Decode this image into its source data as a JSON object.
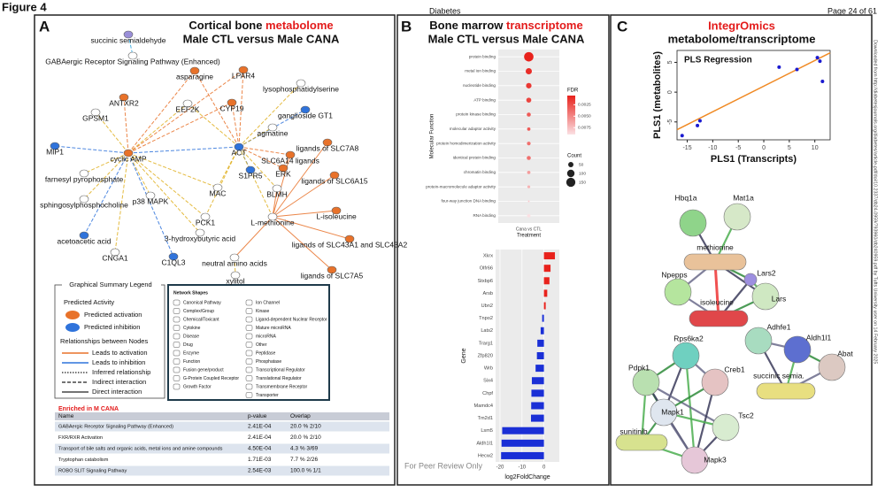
{
  "header": {
    "figure": "Figure 4",
    "journal": "Diabetes",
    "page": "Page 24 of 61"
  },
  "side_note": "Downloaded from http://diabetesjournals.org/diabetes/article-pdf/doi/10.2337/db24-0959/793960/db240959.pdf by Tufts University user on 14 February 2025",
  "panel_a": {
    "letter": "A",
    "title": "Cortical bone ",
    "title_highlight": "metabolome",
    "subtitle": "Male CTL versus Male CANA",
    "nodes": [
      {
        "label": "succinic semialdehyde",
        "color": "#9a8fd8"
      },
      {
        "label": "GABAergic Receptor Signaling Pathway (Enhanced)",
        "color": "#ffffff"
      },
      {
        "label": "asparagine",
        "color": "#e8722a"
      },
      {
        "label": "LPAR4",
        "color": "#e8722a"
      },
      {
        "label": "lysophosphatidylserine",
        "color": "#ffffff"
      },
      {
        "label": "ANTXR2",
        "color": "#e8722a"
      },
      {
        "label": "EEF2K",
        "color": "#ffffff"
      },
      {
        "label": "CYP19",
        "color": "#e8722a"
      },
      {
        "label": "GPSM1",
        "color": "#ffffff"
      },
      {
        "label": "ganglioside GT1",
        "color": "#2f73db"
      },
      {
        "label": "agmatine",
        "color": "#ffffff"
      },
      {
        "label": "MIP1",
        "color": "#2f73db"
      },
      {
        "label": "cyclic AMP",
        "color": "#e8722a"
      },
      {
        "label": "ACT",
        "color": "#2f73db"
      },
      {
        "label": "ligands of SLC7A8",
        "color": "#e8722a"
      },
      {
        "label": "SLC6A14 ligands",
        "color": "#e8722a"
      },
      {
        "label": "ERK",
        "color": "#e8722a"
      },
      {
        "label": "farnesyl pyrophosphate",
        "color": "#ffffff"
      },
      {
        "label": "S1PR5",
        "color": "#2f73db"
      },
      {
        "label": "ligands of SLC6A15",
        "color": "#e8722a"
      },
      {
        "label": "BLMH",
        "color": "#ffffff"
      },
      {
        "label": "sphingosylphosphocholine",
        "color": "#ffffff"
      },
      {
        "label": "MAC",
        "color": "#ffffff"
      },
      {
        "label": "p38 MAPK",
        "color": "#ffffff"
      },
      {
        "label": "L-isoleucine",
        "color": "#e8722a"
      },
      {
        "label": "PCK1",
        "color": "#ffffff"
      },
      {
        "label": "L-methionine",
        "color": "#ffffff"
      },
      {
        "label": "3-hydroxybutyric acid",
        "color": "#ffffff"
      },
      {
        "label": "acetoacetic acid",
        "color": "#2f73db"
      },
      {
        "label": "ligands of SLC43A1 and SLC43A2",
        "color": "#e8722a"
      },
      {
        "label": "CNGA1",
        "color": "#ffffff"
      },
      {
        "label": "C1QL3",
        "color": "#2f73db"
      },
      {
        "label": "neutral amino acids",
        "color": "#ffffff"
      },
      {
        "label": "xylitol",
        "color": "#ffffff"
      },
      {
        "label": "ligands of SLC7A5",
        "color": "#e8722a"
      }
    ],
    "legend": {
      "title": "Graphical Summary Legend",
      "activity_title": "Predicted Activity",
      "activation": "Predicted activation",
      "inhibition": "Predicted inhibition",
      "relations_title": "Relationships between Nodes",
      "relations": [
        "Leads to activation",
        "Leads to inhibition",
        "Inferred relationship",
        "Indirect interaction",
        "Direct interaction"
      ]
    },
    "shapes": {
      "title": "Network Shapes",
      "items": [
        "Canonical Pathway",
        "Complex/Group",
        "Chemical/Toxicant",
        "Cytokine",
        "Disease",
        "Drug",
        "Enzyme",
        "Function",
        "Fusion gene/product",
        "G-Protein Coupled Receptor",
        "Growth Factor",
        "Ion Channel",
        "Kinase",
        "Ligand-dependent Nuclear Receptor",
        "Mature microRNA",
        "microRNA",
        "Other",
        "Peptidase",
        "Phosphatase",
        "Transcriptional Regulator",
        "Translational Regulator",
        "Transmembrane Receptor",
        "Transporter"
      ]
    },
    "table": {
      "title": "Enriched in M CANA",
      "columns": [
        "Name",
        "p-value",
        "Overlap"
      ],
      "rows": [
        [
          "GABAergic Receptor Signaling Pathway (Enhanced)",
          "2.41E-04",
          "20.0 % 2/10"
        ],
        [
          "FXR/RXR Activation",
          "2.41E-04",
          "20.0 % 2/10"
        ],
        [
          "Transport of bile salts and organic acids, metal ions and amine compounds",
          "4.50E-04",
          "4.3 % 3/69"
        ],
        [
          "Tryptophan catabolism",
          "1.71E-03",
          "7.7 % 2/26"
        ],
        [
          "ROBO SLIT Signaling Pathway",
          "2.54E-03",
          "100.0 % 1/1"
        ]
      ]
    }
  },
  "panel_b": {
    "letter": "B",
    "title": "Bone marrow ",
    "title_highlight": "transcriptome",
    "subtitle": "Male CTL versus Male CANA",
    "footer": "For Peer Review Only",
    "dot_plot": {
      "type": "dot",
      "categories": [
        "protein binding",
        "metal ion binding",
        "nucleotide binding",
        "ATP binding",
        "protein kinase binding",
        "molecular adaptor activity",
        "protein homodimerization activity",
        "identical protein binding",
        "chromatin binding",
        "protein-macromolecule adaptor activity",
        "four-way junction DNA binding",
        "RNA binding"
      ],
      "count": [
        160,
        70,
        55,
        45,
        30,
        20,
        25,
        30,
        20,
        15,
        5,
        20
      ],
      "fdr": [
        0.0005,
        0.001,
        0.0015,
        0.002,
        0.003,
        0.003,
        0.004,
        0.004,
        0.006,
        0.007,
        0.008,
        0.009
      ],
      "x_category": "Cana vs CTL",
      "x_label": "Treatment",
      "y_label": "Molecular Function",
      "fdr_title": "FDR",
      "fdr_lim": [
        0.0005,
        0.009
      ],
      "fdr_ticks": [
        0.0075,
        {
          "value": 0.005,
          "label": "0.0050"
        },
        0.0025
      ],
      "count_title": "Count",
      "count_ticks": [
        50,
        100,
        150
      ],
      "low_color": "#e8221c",
      "high_color": "#fbe0e3"
    },
    "bar_chart": {
      "type": "bar",
      "categories": [
        "Xkrx",
        "Olfr66",
        "Stxbp6",
        "Arsb",
        "Ubn2",
        "Tnpo2",
        "Lats2",
        "Trarg1",
        "Zfp820",
        "Wrb",
        "Six4",
        "Chpf",
        "Mamdc4",
        "Tm2d1",
        "Lsm5",
        "Aldh1l1",
        "Hecw2"
      ],
      "values": [
        5.0,
        3.0,
        2.5,
        1.5,
        0.8,
        -0.8,
        -1.5,
        -3.0,
        -3.2,
        -3.8,
        -5.5,
        -5.7,
        -5.8,
        -5.9,
        -19.0,
        -19.3,
        -19.5
      ],
      "xlim": [
        -22,
        7
      ],
      "xticks": [
        -20,
        -10,
        0
      ],
      "x_label": "log2FoldChange",
      "y_label": "Gene",
      "positive_color": "#e8221c",
      "negative_color": "#1a2fd6"
    }
  },
  "panel_c": {
    "letter": "C",
    "title": "IntegrOmics",
    "subtitle": "metabolome/transcriptome",
    "scatter": {
      "type": "scatter",
      "title": "PLS Regression",
      "x": [
        -16,
        -12.5,
        -13,
        3,
        6.5,
        10.5,
        11.5,
        11
      ],
      "y": [
        -7.3,
        -4.8,
        -5.6,
        4.2,
        3.8,
        5.8,
        1.8,
        5.2
      ],
      "fit": {
        "x": [
          -17,
          13
        ],
        "y": [
          -6.3,
          6.6
        ]
      },
      "xlim": [
        -17,
        13
      ],
      "ylim": [
        -8,
        7
      ],
      "xticks": [
        -15,
        -10,
        -5,
        0,
        5,
        10
      ],
      "yticks": [
        -5,
        0,
        5
      ],
      "x_label": "PLS1 (Transcripts)",
      "y_label": "PLS1 (metabolites)",
      "color": "#1a1ad0",
      "line_color": "#f08a24"
    },
    "network": {
      "nodes": [
        {
          "label": "Hbq1a",
          "color": "#8fd48a"
        },
        {
          "label": "Mat1a",
          "color": "#d6e8c8"
        },
        {
          "label": "methionine",
          "color": "#e9c29a"
        },
        {
          "label": "Lars2",
          "color": "#9d8fe0"
        },
        {
          "label": "Npepps",
          "color": "#b5e59e"
        },
        {
          "label": "Lars",
          "color": "#cfe8c2"
        },
        {
          "label": "isoleucine",
          "color": "#e0474a"
        },
        {
          "label": "Adhfe1",
          "color": "#a8dcc0"
        },
        {
          "label": "Aldh1l1",
          "color": "#5d6fd0"
        },
        {
          "label": "Rps6ka2",
          "color": "#6fd0c0"
        },
        {
          "label": "Abat",
          "color": "#dcc9c2"
        },
        {
          "label": "Creb1",
          "color": "#e5c3c3"
        },
        {
          "label": "Pdpk1",
          "color": "#b9e0b0"
        },
        {
          "label": "succinic semia.",
          "color": "#e8df80"
        },
        {
          "label": "Mapk1",
          "color": "#dfe6ef"
        },
        {
          "label": "Tsc2",
          "color": "#d8ecd0"
        },
        {
          "label": "sunitinib",
          "color": "#d7e28f"
        },
        {
          "label": "Mapk3",
          "color": "#e6c7d8"
        }
      ]
    }
  }
}
